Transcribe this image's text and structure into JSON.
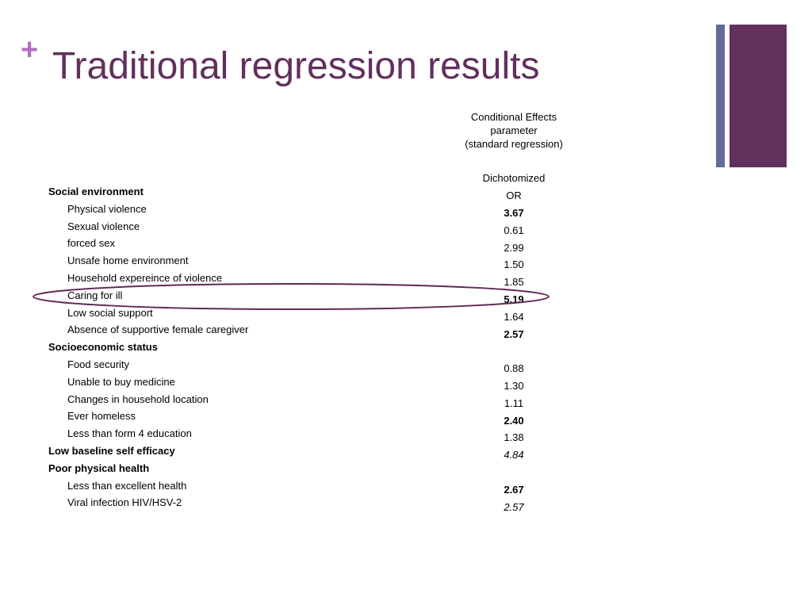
{
  "slide": {
    "plus_glyph": "+",
    "title": "Traditional regression results",
    "accent_color": "#62305d",
    "plus_color": "#b36fc3",
    "secondary_bar_color": "#666a9a"
  },
  "table": {
    "header_lines": [
      "Conditional Effects",
      "parameter",
      "(standard regression)"
    ],
    "subheader": "Dichotomized",
    "unit": "OR",
    "rows": [
      {
        "label": "Social environment",
        "kind": "category",
        "value": ""
      },
      {
        "label": "Physical violence",
        "kind": "item",
        "value": "3.67",
        "style": "bold"
      },
      {
        "label": "Sexual violence",
        "kind": "item",
        "value": "0.61",
        "style": "normal"
      },
      {
        "label": "forced sex",
        "kind": "item",
        "value": "2.99",
        "style": "normal"
      },
      {
        "label": "Unsafe home environment",
        "kind": "item",
        "value": "1.50",
        "style": "normal"
      },
      {
        "label": "Household expereince of violence",
        "kind": "item",
        "value": "1.85",
        "style": "normal"
      },
      {
        "label": "Caring for ill",
        "kind": "item",
        "value": "5.19",
        "style": "bold",
        "highlighted": true
      },
      {
        "label": "Low social support",
        "kind": "item",
        "value": "1.64",
        "style": "normal"
      },
      {
        "label": "Absence of supportive female caregiver",
        "kind": "item",
        "value": "2.57",
        "style": "bold"
      },
      {
        "label": "Socioeconomic status",
        "kind": "category",
        "value": ""
      },
      {
        "label": "Food security",
        "kind": "item",
        "value": "0.88",
        "style": "normal"
      },
      {
        "label": "Unable to buy medicine",
        "kind": "item",
        "value": "1.30",
        "style": "normal"
      },
      {
        "label": "Changes in household location",
        "kind": "item",
        "value": "1.11",
        "style": "normal"
      },
      {
        "label": "Ever homeless",
        "kind": "item",
        "value": "2.40",
        "style": "bold"
      },
      {
        "label": "Less than form 4 education",
        "kind": "item",
        "value": "1.38",
        "style": "normal"
      },
      {
        "label": "Low baseline self efficacy",
        "kind": "category",
        "value": "4.84",
        "style": "italic"
      },
      {
        "label": "Poor physical health",
        "kind": "category",
        "value": ""
      },
      {
        "label": "Less than excellent health",
        "kind": "item",
        "value": "2.67",
        "style": "bold"
      },
      {
        "label": "Viral infection HIV/HSV-2",
        "kind": "item",
        "value": "2.57",
        "style": "italic"
      }
    ]
  }
}
